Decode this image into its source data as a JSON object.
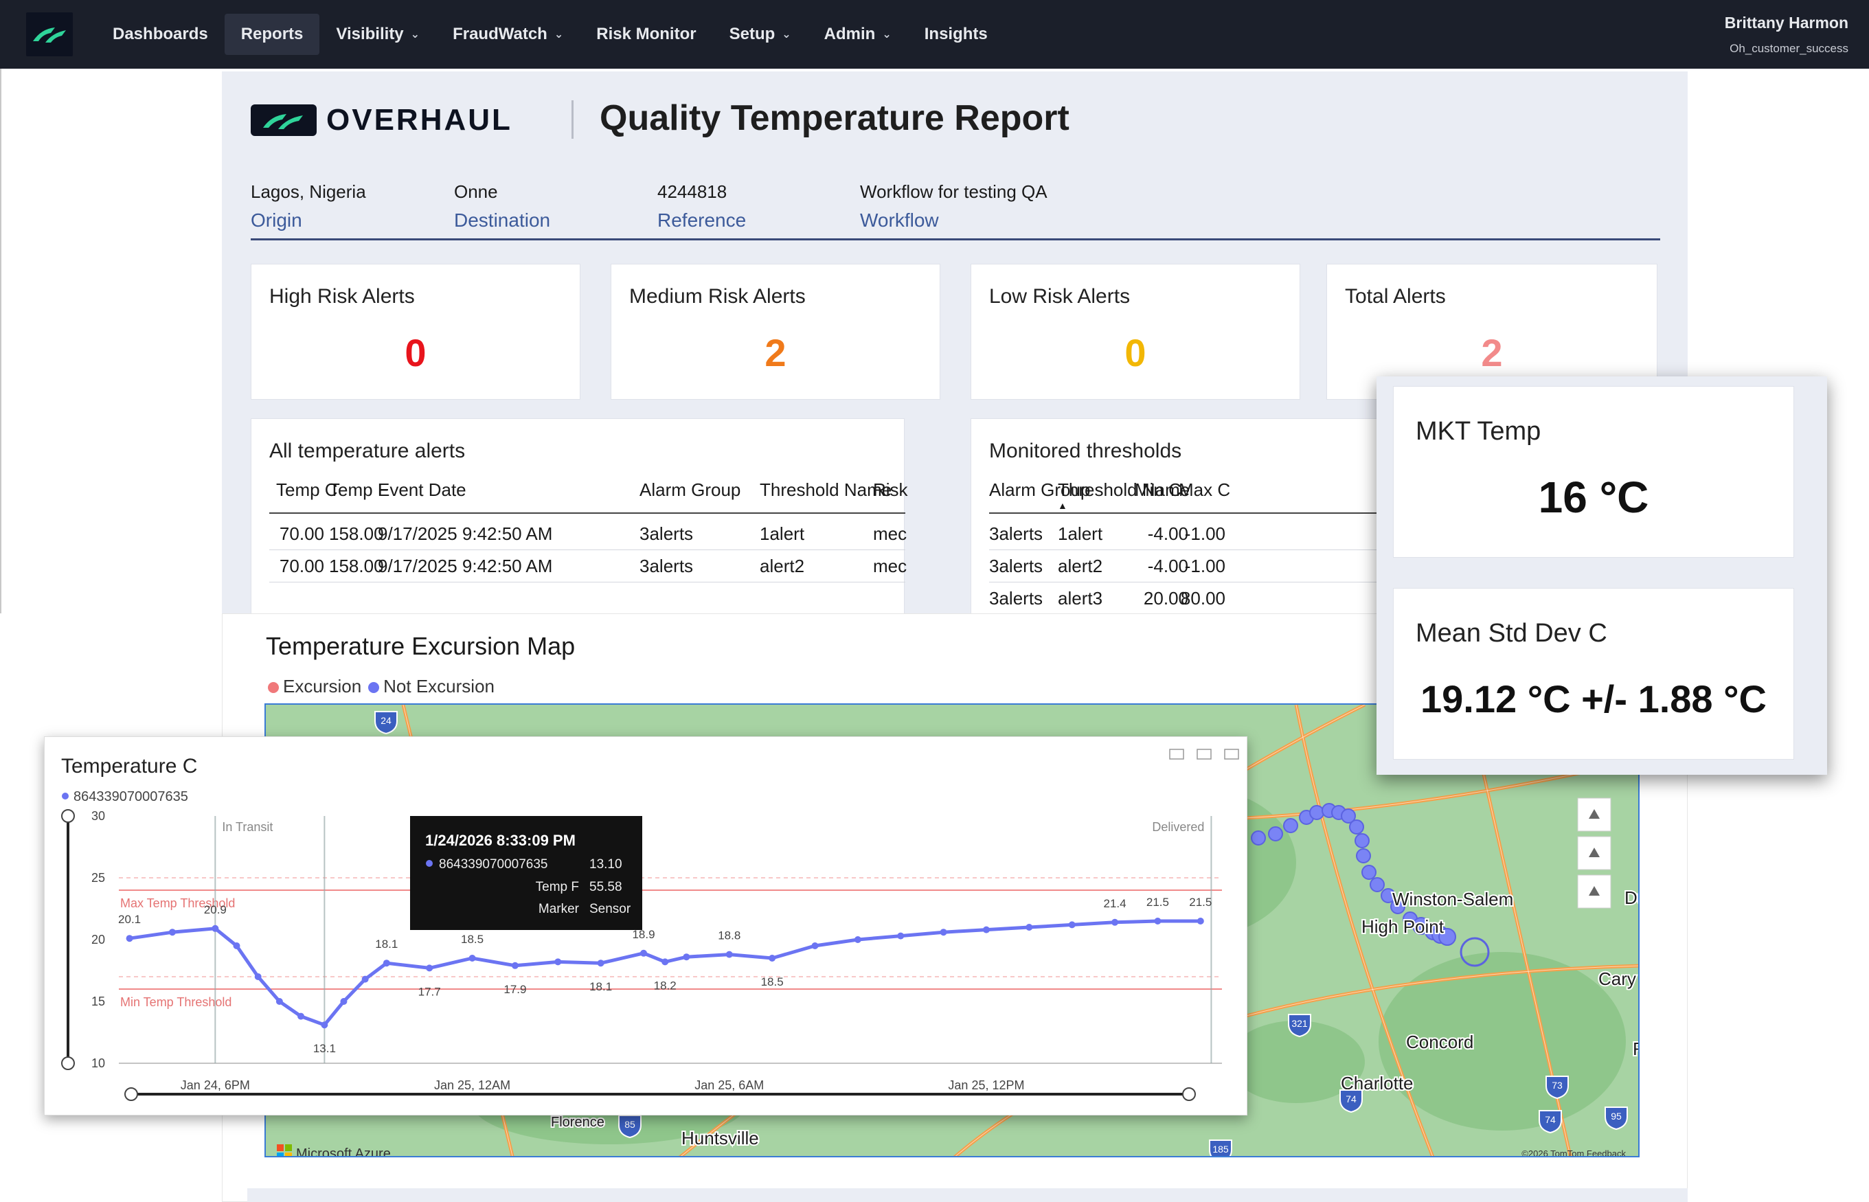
{
  "nav": {
    "logo": "overhaul-logo-icon",
    "items": [
      {
        "label": "Dashboards",
        "dropdown": false
      },
      {
        "label": "Reports",
        "dropdown": false,
        "active": true
      },
      {
        "label": "Visibility",
        "dropdown": true
      },
      {
        "label": "FraudWatch",
        "dropdown": true
      },
      {
        "label": "Risk Monitor",
        "dropdown": false
      },
      {
        "label": "Setup",
        "dropdown": true
      },
      {
        "label": "Admin",
        "dropdown": true
      },
      {
        "label": "Insights",
        "dropdown": false
      }
    ],
    "user_name": "Brittany Harmon",
    "user_role": "Oh_customer_success"
  },
  "report": {
    "brand": "OVERHAUL",
    "title": "Quality Temperature Report",
    "meta": [
      {
        "value": "Lagos, Nigeria",
        "label": "Origin"
      },
      {
        "value": "Onne",
        "label": "Destination"
      },
      {
        "value": "4244818",
        "label": "Reference"
      },
      {
        "value": "Workflow for testing QA",
        "label": "Workflow"
      }
    ],
    "alerts": [
      {
        "title": "High Risk Alerts",
        "value": "0",
        "color": "#e8141c"
      },
      {
        "title": "Medium Risk Alerts",
        "value": "2",
        "color": "#f07a1a"
      },
      {
        "title": "Low Risk Alerts",
        "value": "0",
        "color": "#f2b705"
      },
      {
        "title": "Total Alerts",
        "value": "2",
        "color": "#f28a8a"
      }
    ],
    "temp_alerts": {
      "title": "All temperature alerts",
      "columns": [
        "Temp C",
        "Temp F",
        "Event Date",
        "Alarm Group",
        "Threshold Name",
        "Risk"
      ],
      "rows": [
        [
          "70.00",
          "158.00",
          "9/17/2025 9:42:50 AM",
          "3alerts",
          "1alert",
          "mec"
        ],
        [
          "70.00",
          "158.00",
          "9/17/2025 9:42:50 AM",
          "3alerts",
          "alert2",
          "mec"
        ]
      ]
    },
    "thresholds": {
      "title": "Monitored thresholds",
      "columns": [
        "Alarm Group",
        "Threshold Name",
        "Min C",
        "Max C"
      ],
      "rows": [
        [
          "3alerts",
          "1alert",
          "-4.00",
          "-1.00"
        ],
        [
          "3alerts",
          "alert2",
          "-4.00",
          "-1.00"
        ],
        [
          "3alerts",
          "alert3",
          "20.00",
          "80.00"
        ]
      ]
    },
    "kpi": {
      "mkt_title": "MKT Temp",
      "mkt_value": "16 °C",
      "std_title": "Mean Std Dev C",
      "std_value": "19.12 °C +/- 1.88 °C"
    },
    "map": {
      "title": "Temperature Excursion Map",
      "legend": [
        {
          "label": "Excursion",
          "color": "#f0787a"
        },
        {
          "label": "Not Excursion",
          "color": "#6b74f2"
        }
      ],
      "place_labels": [
        "Winston-Salem",
        "High Point",
        "Cary",
        "Concord",
        "Charlotte",
        "Florence",
        "Huntsville",
        "Du",
        "Fa"
      ],
      "road_labels": [
        "24",
        "321",
        "74",
        "73",
        "74",
        "95",
        "185",
        "85"
      ],
      "attribution": "Microsoft Azure",
      "copyright": "©2026 TomTom  Feedback"
    }
  },
  "chart_data": {
    "type": "line",
    "title": "Temperature C",
    "series": [
      {
        "name": "864339070007635",
        "color": "#6b74f2",
        "x": [
          "1/24 16:00",
          "1/24 17:00",
          "1/24 18:00",
          "1/24 18:30",
          "1/24 19:00",
          "1/24 19:30",
          "1/24 20:00",
          "1/24 20:33",
          "1/24 21:00",
          "1/24 21:30",
          "1/24 22:00",
          "1/24 23:00",
          "1/25 0:00",
          "1/25 1:00",
          "1/25 2:00",
          "1/25 3:00",
          "1/25 4:00",
          "1/25 4:30",
          "1/25 5:00",
          "1/25 6:00",
          "1/25 7:00",
          "1/25 8:00",
          "1/25 9:00",
          "1/25 10:00",
          "1/25 11:00",
          "1/25 12:00",
          "1/25 13:00",
          "1/25 14:00",
          "1/25 15:00",
          "1/25 16:00",
          "1/25 17:00"
        ],
        "y": [
          20.1,
          20.6,
          20.9,
          19.5,
          17.0,
          15.0,
          13.8,
          13.1,
          15.0,
          16.8,
          18.1,
          17.7,
          18.5,
          17.9,
          18.2,
          18.1,
          18.9,
          18.2,
          18.6,
          18.8,
          18.5,
          19.5,
          20.0,
          20.3,
          20.6,
          20.8,
          21.0,
          21.2,
          21.4,
          21.5,
          21.5
        ]
      }
    ],
    "data_labels": [
      {
        "x": "1/24 16:00",
        "text": "20.1"
      },
      {
        "x": "1/24 18:00",
        "text": "20.9"
      },
      {
        "x": "1/24 20:33",
        "text": "13.1"
      },
      {
        "x": "1/24 22:00",
        "text": "18.1"
      },
      {
        "x": "1/24 23:00",
        "text": "17.7"
      },
      {
        "x": "1/25 0:00",
        "text": "18.5"
      },
      {
        "x": "1/25 1:00",
        "text": "17.9"
      },
      {
        "x": "1/25 3:00",
        "text": "18.1"
      },
      {
        "x": "1/25 4:00",
        "text": "18.9"
      },
      {
        "x": "1/25 4:30",
        "text": "18.2"
      },
      {
        "x": "1/25 6:00",
        "text": "18.8"
      },
      {
        "x": "1/25 7:00",
        "text": "18.5"
      },
      {
        "x": "1/25 15:00",
        "text": "21.4"
      },
      {
        "x": "1/25 16:00",
        "text": "21.5"
      },
      {
        "x": "1/25 17:00",
        "text": "21.5"
      }
    ],
    "reference_lines": [
      {
        "y": 24,
        "label": "Max Temp Threshold"
      },
      {
        "y": 16,
        "label": "Min Temp Threshold"
      }
    ],
    "markers": [
      {
        "x": "1/24 18:00",
        "text": "In Transit"
      },
      {
        "x": "1/24 20:33",
        "text": ""
      },
      {
        "x": "1/25 17:15",
        "text": "Delivered"
      }
    ],
    "xticks": [
      {
        "x": "1/24 18:00",
        "label": "Jan 24, 6PM"
      },
      {
        "x": "1/25 0:00",
        "label": "Jan 25, 12AM"
      },
      {
        "x": "1/25 6:00",
        "label": "Jan 25, 6AM"
      },
      {
        "x": "1/25 12:00",
        "label": "Jan 25, 12PM"
      }
    ],
    "yticks": [
      "10",
      "15",
      "20",
      "25",
      "30"
    ],
    "ylim": [
      10,
      30
    ],
    "grid": false,
    "tooltip": {
      "title": "1/24/2026 8:33:09 PM",
      "series": "864339070007635",
      "series_value": "13.10",
      "rows": [
        {
          "k": "Temp F",
          "v": "55.58"
        },
        {
          "k": "Marker",
          "v": "Sensor"
        }
      ]
    }
  }
}
